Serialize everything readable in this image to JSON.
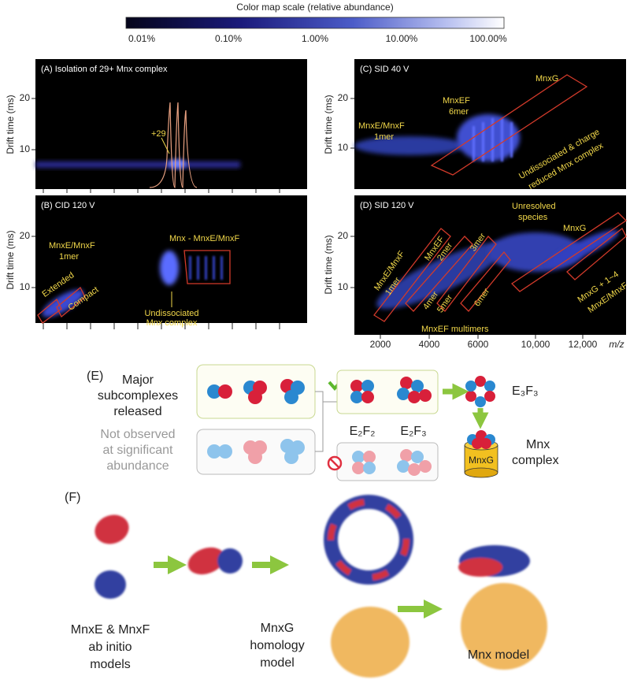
{
  "colorbar": {
    "title": "Color map scale (relative abundance)",
    "ticks": [
      "0.01%",
      "0.10%",
      "1.00%",
      "10.00%",
      "100.00%"
    ]
  },
  "panel_a": {
    "title": "(A) Isolation of 29+ Mnx complex",
    "y_label": "Drift time (ms)",
    "y_ticks": [
      10,
      20
    ],
    "peak_label": "+29"
  },
  "panel_b": {
    "title": "(B) CID 120 V",
    "y_label": "Drift time (ms)",
    "y_ticks": [
      10,
      20
    ],
    "monomer": [
      "MnxE/MnxF",
      "1mer"
    ],
    "extended": "Extended",
    "compact": "Compact",
    "subcomplex": "Mnx - MnxE/MnxF",
    "undissociated": [
      "Undissociated",
      "Mnx complex"
    ]
  },
  "panel_c": {
    "title": "(C) SID 40 V",
    "y_label": "Drift time (ms)",
    "y_ticks": [
      10,
      20
    ],
    "monomer": [
      "MnxE/MnxF",
      "1mer"
    ],
    "hexamer": [
      "MnxEF",
      "6mer"
    ],
    "mnxg": "MnxG",
    "undissociated": [
      "Undissociated & charge",
      "reduced Mnx complex"
    ]
  },
  "panel_d": {
    "title": "(D) SID 120 V",
    "y_label": "Drift time (ms)",
    "y_ticks": [
      10,
      20
    ],
    "monomer": [
      "MnxE/MnxF",
      "1mer"
    ],
    "dimer": [
      "MnxEF",
      "2mer"
    ],
    "trimer": "3mer",
    "tetramer": "4mer",
    "pentamer": "5mer",
    "hexamer": "6mer",
    "multimers": "MnxEF multimers",
    "unresolved": [
      "Unresolved",
      "species"
    ],
    "mnxg": "MnxG",
    "mnxg_plus": [
      "MnxG + 1~4",
      "MnxE/MnxF"
    ],
    "x_ticks": [
      "2000",
      "4000",
      "6000",
      "10,000",
      "12,000"
    ],
    "x_label": "m/z"
  },
  "panel_e": {
    "label": "(E)",
    "major": [
      "Major",
      "subcomplexes",
      "released"
    ],
    "not_observed": [
      "Not observed",
      "at significant",
      "abundance"
    ],
    "e2f2": "E₂F₂",
    "e2f3": "E₂F₃",
    "e3f3": "E₃F₃",
    "mnx_complex": [
      "Mnx",
      "complex"
    ],
    "mnxg": "MnxG"
  },
  "panel_f": {
    "label": "(F)",
    "models": [
      "MnxE & MnxF",
      "ab initio",
      "models"
    ],
    "homology": [
      "MnxG",
      "homology",
      "model"
    ],
    "mnx_model": "Mnx model"
  }
}
